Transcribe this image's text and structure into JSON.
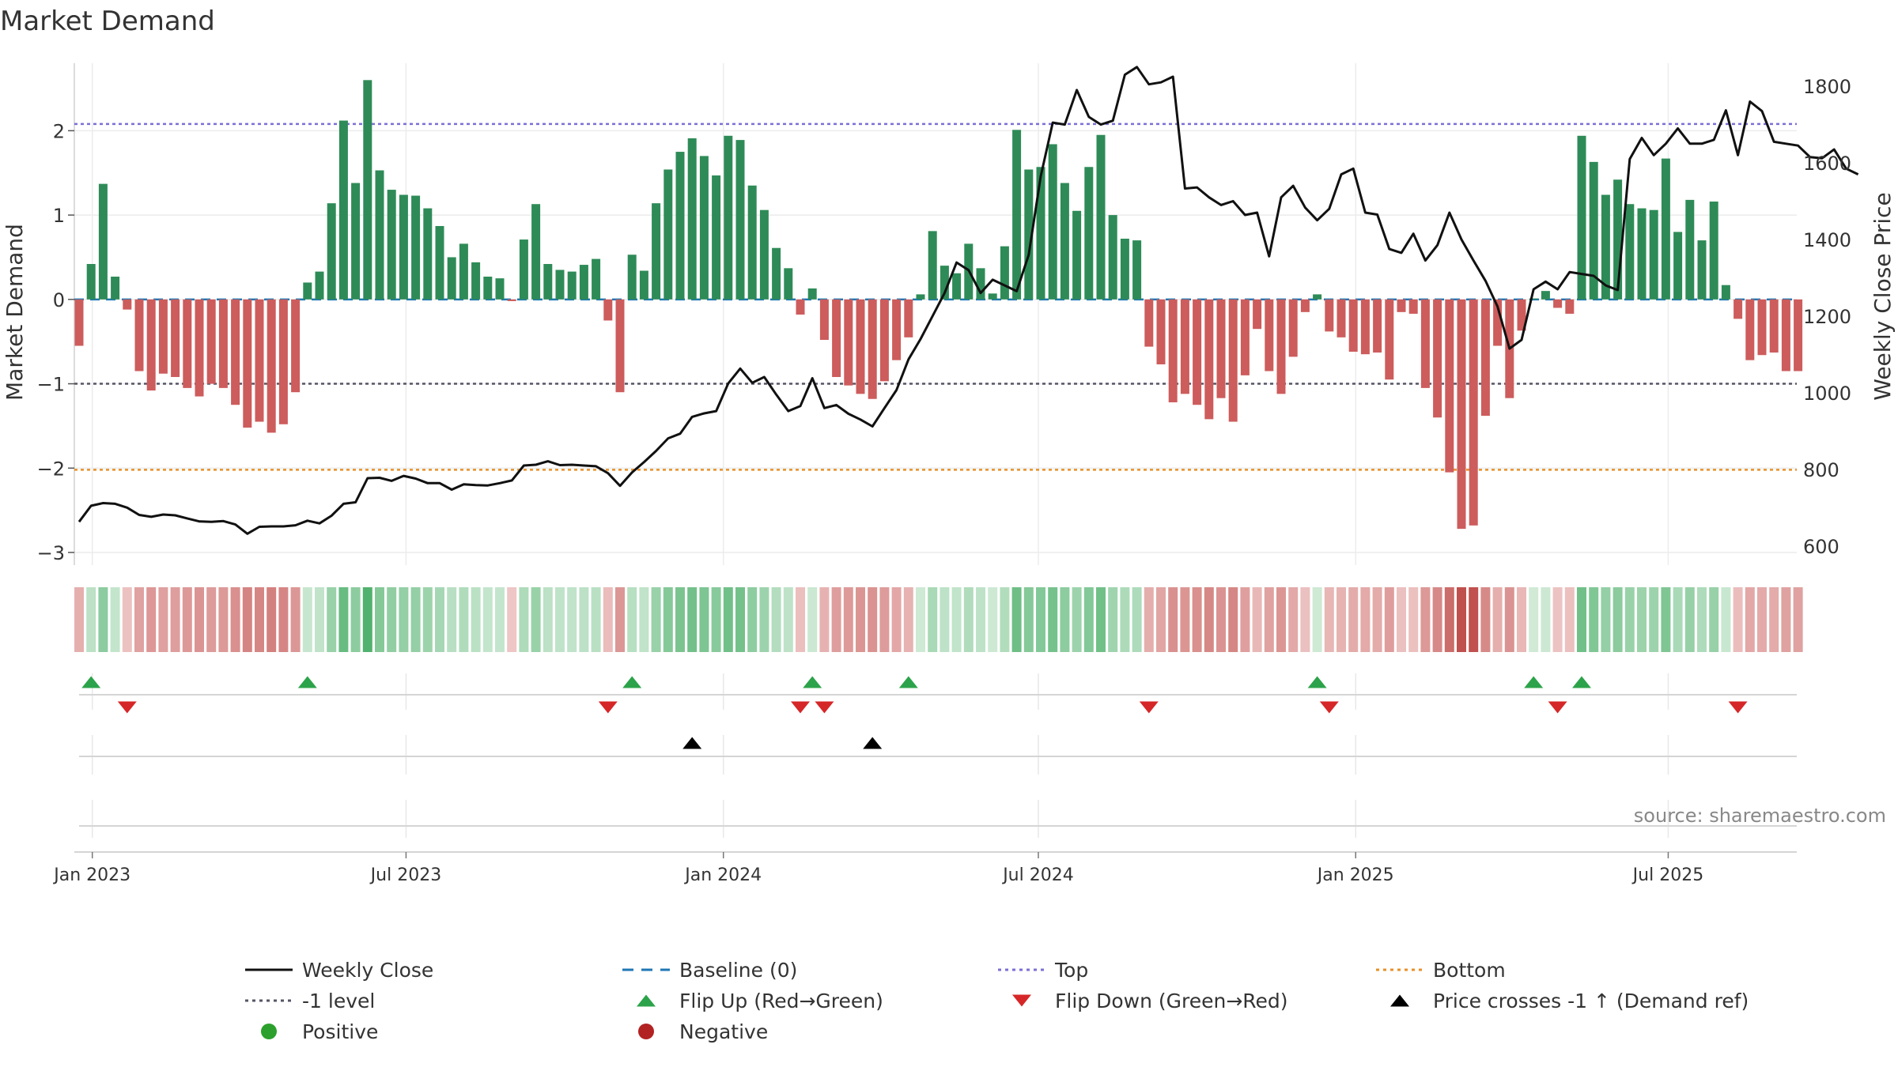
{
  "chart_data": {
    "type": "bar",
    "title": "Market Demand",
    "ylabel": "Market Demand",
    "y2label": "Weekly Close Price",
    "source": "source: sharemaestro.com",
    "ylim": [
      -3.15,
      2.8
    ],
    "y2lim": [
      550,
      1860
    ],
    "yticks": [
      -3,
      -2,
      -1,
      0,
      1,
      2
    ],
    "y2ticks": [
      600,
      800,
      1000,
      1200,
      1400,
      1600,
      1800
    ],
    "xticks": [
      {
        "label": "Jan 2023",
        "index": 1.1
      },
      {
        "label": "Jul 2023",
        "index": 27.2
      },
      {
        "label": "Jan 2024",
        "index": 53.6
      },
      {
        "label": "Jul 2024",
        "index": 79.8
      },
      {
        "label": "Jan 2025",
        "index": 106.2
      },
      {
        "label": "Jul 2025",
        "index": 132.2
      }
    ],
    "reference_lines": {
      "top": 2.08,
      "minus_one": -1.0,
      "bottom": -2.02,
      "baseline": 0
    },
    "demand": [
      -0.55,
      0.42,
      1.37,
      0.27,
      -0.12,
      -0.85,
      -1.08,
      -0.88,
      -0.92,
      -1.05,
      -1.15,
      -1.0,
      -1.05,
      -1.25,
      -1.52,
      -1.45,
      -1.58,
      -1.48,
      -1.1,
      0.2,
      0.33,
      1.14,
      2.12,
      1.38,
      2.6,
      1.53,
      1.3,
      1.24,
      1.23,
      1.08,
      0.87,
      0.5,
      0.66,
      0.44,
      0.27,
      0.25,
      -0.02,
      0.71,
      1.13,
      0.42,
      0.35,
      0.33,
      0.41,
      0.48,
      -0.25,
      -1.1,
      0.53,
      0.34,
      1.14,
      1.54,
      1.75,
      1.91,
      1.7,
      1.47,
      1.94,
      1.89,
      1.35,
      1.06,
      0.61,
      0.37,
      -0.18,
      0.13,
      -0.48,
      -0.92,
      -1.02,
      -1.12,
      -1.18,
      -0.97,
      -0.72,
      -0.45,
      0.06,
      0.81,
      0.4,
      0.31,
      0.66,
      0.37,
      0.07,
      0.63,
      2.01,
      1.54,
      1.57,
      1.84,
      1.38,
      1.05,
      1.57,
      1.95,
      1.0,
      0.72,
      0.7,
      -0.56,
      -0.77,
      -1.22,
      -1.12,
      -1.25,
      -1.42,
      -1.17,
      -1.45,
      -0.9,
      -0.35,
      -0.85,
      -1.12,
      -0.68,
      -0.15,
      0.06,
      -0.38,
      -0.45,
      -0.62,
      -0.65,
      -0.63,
      -0.95,
      -0.15,
      -0.17,
      -1.05,
      -1.4,
      -2.05,
      -2.72,
      -2.68,
      -1.38,
      -0.55,
      -1.17,
      -0.37,
      0.01,
      0.1,
      -0.1,
      -0.17,
      1.94,
      1.63,
      1.24,
      1.42,
      1.13,
      1.08,
      1.06,
      1.67,
      0.8,
      1.18,
      0.7,
      1.16,
      0.17,
      -0.23,
      -0.72,
      -0.66,
      -0.63,
      -0.85,
      -0.85
    ],
    "price": [
      663,
      705,
      712,
      710,
      700,
      681,
      676,
      682,
      680,
      672,
      664,
      663,
      665,
      656,
      632,
      650,
      651,
      651,
      654,
      666,
      659,
      679,
      710,
      714,
      777,
      778,
      770,
      783,
      776,
      764,
      764,
      747,
      761,
      759,
      758,
      764,
      771,
      810,
      812,
      821,
      811,
      812,
      810,
      808,
      790,
      757,
      792,
      819,
      848,
      881,
      893,
      937,
      946,
      952,
      1024,
      1063,
      1026,
      1041,
      995,
      952,
      965,
      1038,
      960,
      968,
      945,
      930,
      912,
      960,
      1007,
      1087,
      1140,
      1200,
      1260,
      1340,
      1320,
      1260,
      1295,
      1280,
      1265,
      1360,
      1565,
      1705,
      1700,
      1790,
      1720,
      1700,
      1710,
      1830,
      1850,
      1805,
      1810,
      1825,
      1533,
      1536,
      1510,
      1490,
      1500,
      1464,
      1470,
      1356,
      1510,
      1540,
      1483,
      1450,
      1480,
      1570,
      1585,
      1470,
      1465,
      1375,
      1365,
      1415,
      1345,
      1385,
      1470,
      1400,
      1345,
      1292,
      1225,
      1115,
      1138,
      1270,
      1290,
      1270,
      1315,
      1310,
      1305,
      1280,
      1268,
      1610,
      1665,
      1620,
      1650,
      1690,
      1650,
      1650,
      1660,
      1737,
      1620,
      1760,
      1735,
      1655,
      1650,
      1645,
      1615,
      1612,
      1635,
      1585,
      1570
    ],
    "flip_up_idx": [
      1,
      19,
      46,
      61,
      69,
      103,
      121,
      125
    ],
    "flip_down_idx": [
      4,
      44,
      60,
      62,
      89,
      104,
      123,
      138
    ],
    "price_cross_idx": [
      51,
      66
    ],
    "legend": [
      {
        "key": "weekly_close",
        "label": "Weekly Close",
        "swatch": "line",
        "color": "#111111"
      },
      {
        "key": "baseline",
        "label": "Baseline (0)",
        "swatch": "dash",
        "color": "#1f77b4"
      },
      {
        "key": "top",
        "label": "Top",
        "swatch": "dot",
        "color": "#7b6fd6"
      },
      {
        "key": "bottom",
        "label": "Bottom",
        "swatch": "dot",
        "color": "#e8902a"
      },
      {
        "key": "minus_one",
        "label": "-1 level",
        "swatch": "dot",
        "color": "#555566"
      },
      {
        "key": "flip_up",
        "label": "Flip Up (Red→Green)",
        "swatch": "triangle-up",
        "color": "#2ca34a"
      },
      {
        "key": "flip_down",
        "label": "Flip Down (Green→Red)",
        "swatch": "triangle-down",
        "color": "#d62728"
      },
      {
        "key": "price_cross",
        "label": "Price crosses -1 ↑ (Demand ref)",
        "swatch": "triangle-up",
        "color": "#000000"
      },
      {
        "key": "positive",
        "label": "Positive",
        "swatch": "circle",
        "color": "#2ca02c"
      },
      {
        "key": "negative",
        "label": "Negative",
        "swatch": "circle",
        "color": "#b22222"
      }
    ]
  },
  "colors": {
    "positive_bar": "#2e8b57",
    "negative_bar": "#cd5c5c",
    "price_line": "#111111",
    "top_line": "#7b6fd6",
    "bottom_line": "#e8902a",
    "minus_one_line": "#555566",
    "baseline": "#1f77b4",
    "flip_up": "#2ca34a",
    "flip_down": "#d62728",
    "price_cross": "#000000"
  }
}
